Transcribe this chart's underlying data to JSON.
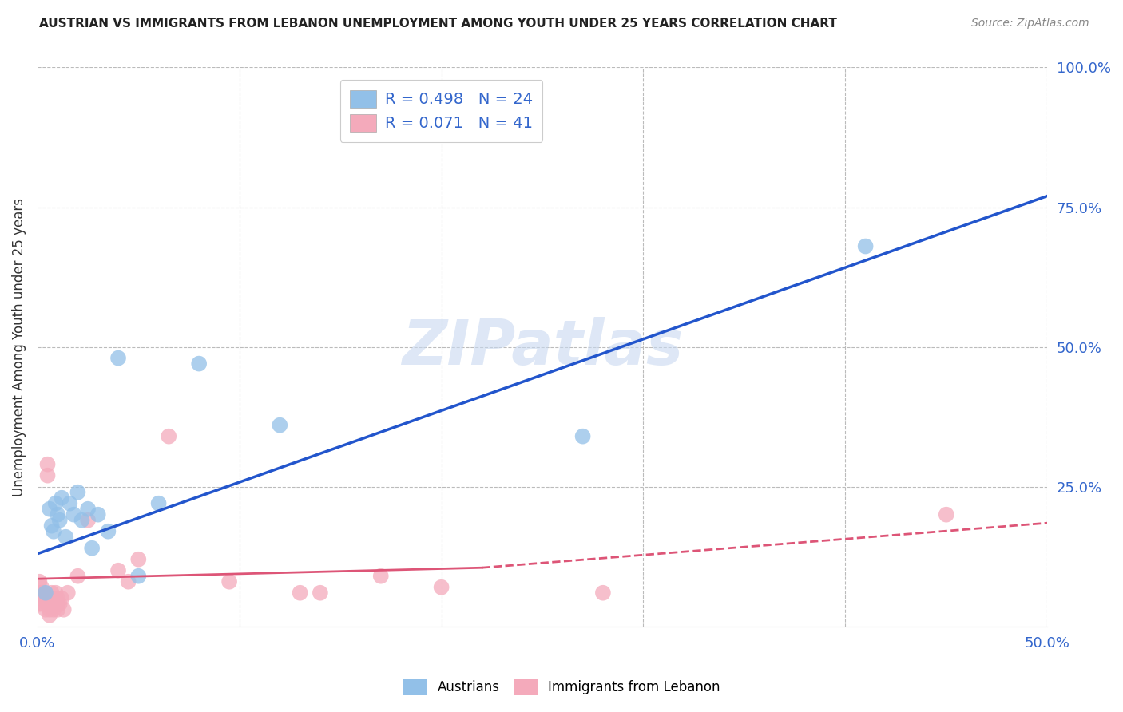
{
  "title": "AUSTRIAN VS IMMIGRANTS FROM LEBANON UNEMPLOYMENT AMONG YOUTH UNDER 25 YEARS CORRELATION CHART",
  "source": "Source: ZipAtlas.com",
  "ylabel": "Unemployment Among Youth under 25 years",
  "xlim": [
    0.0,
    0.5
  ],
  "ylim": [
    0.0,
    1.0
  ],
  "legend_R1": "R = 0.498",
  "legend_N1": "N = 24",
  "legend_R2": "R = 0.071",
  "legend_N2": "N = 41",
  "blue_color": "#92C0E8",
  "pink_color": "#F4AABB",
  "line_blue": "#2255CC",
  "line_pink": "#DD5577",
  "watermark": "ZIPatlas",
  "blue_line_x0": 0.0,
  "blue_line_y0": 0.13,
  "blue_line_x1": 0.5,
  "blue_line_y1": 0.77,
  "pink_line_solid_x0": 0.0,
  "pink_line_solid_y0": 0.085,
  "pink_line_solid_x1": 0.22,
  "pink_line_solid_y1": 0.105,
  "pink_line_dash_x0": 0.22,
  "pink_line_dash_y0": 0.105,
  "pink_line_dash_x1": 0.5,
  "pink_line_dash_y1": 0.185,
  "austrians_x": [
    0.004,
    0.006,
    0.007,
    0.008,
    0.009,
    0.01,
    0.011,
    0.012,
    0.014,
    0.016,
    0.018,
    0.02,
    0.022,
    0.025,
    0.027,
    0.03,
    0.035,
    0.04,
    0.05,
    0.06,
    0.08,
    0.12,
    0.27,
    0.41
  ],
  "austrians_y": [
    0.06,
    0.21,
    0.18,
    0.17,
    0.22,
    0.2,
    0.19,
    0.23,
    0.16,
    0.22,
    0.2,
    0.24,
    0.19,
    0.21,
    0.14,
    0.2,
    0.17,
    0.48,
    0.09,
    0.22,
    0.47,
    0.36,
    0.34,
    0.68
  ],
  "lebanon_x": [
    0.001,
    0.001,
    0.001,
    0.002,
    0.002,
    0.003,
    0.003,
    0.004,
    0.004,
    0.005,
    0.005,
    0.005,
    0.006,
    0.006,
    0.006,
    0.007,
    0.007,
    0.008,
    0.008,
    0.009,
    0.009,
    0.01,
    0.01,
    0.01,
    0.011,
    0.012,
    0.013,
    0.015,
    0.02,
    0.025,
    0.04,
    0.045,
    0.05,
    0.065,
    0.095,
    0.13,
    0.14,
    0.17,
    0.2,
    0.28,
    0.45
  ],
  "lebanon_y": [
    0.04,
    0.06,
    0.08,
    0.05,
    0.07,
    0.04,
    0.06,
    0.03,
    0.05,
    0.27,
    0.29,
    0.04,
    0.05,
    0.03,
    0.02,
    0.04,
    0.06,
    0.05,
    0.03,
    0.04,
    0.06,
    0.05,
    0.04,
    0.03,
    0.04,
    0.05,
    0.03,
    0.06,
    0.09,
    0.19,
    0.1,
    0.08,
    0.12,
    0.34,
    0.08,
    0.06,
    0.06,
    0.09,
    0.07,
    0.06,
    0.2
  ]
}
